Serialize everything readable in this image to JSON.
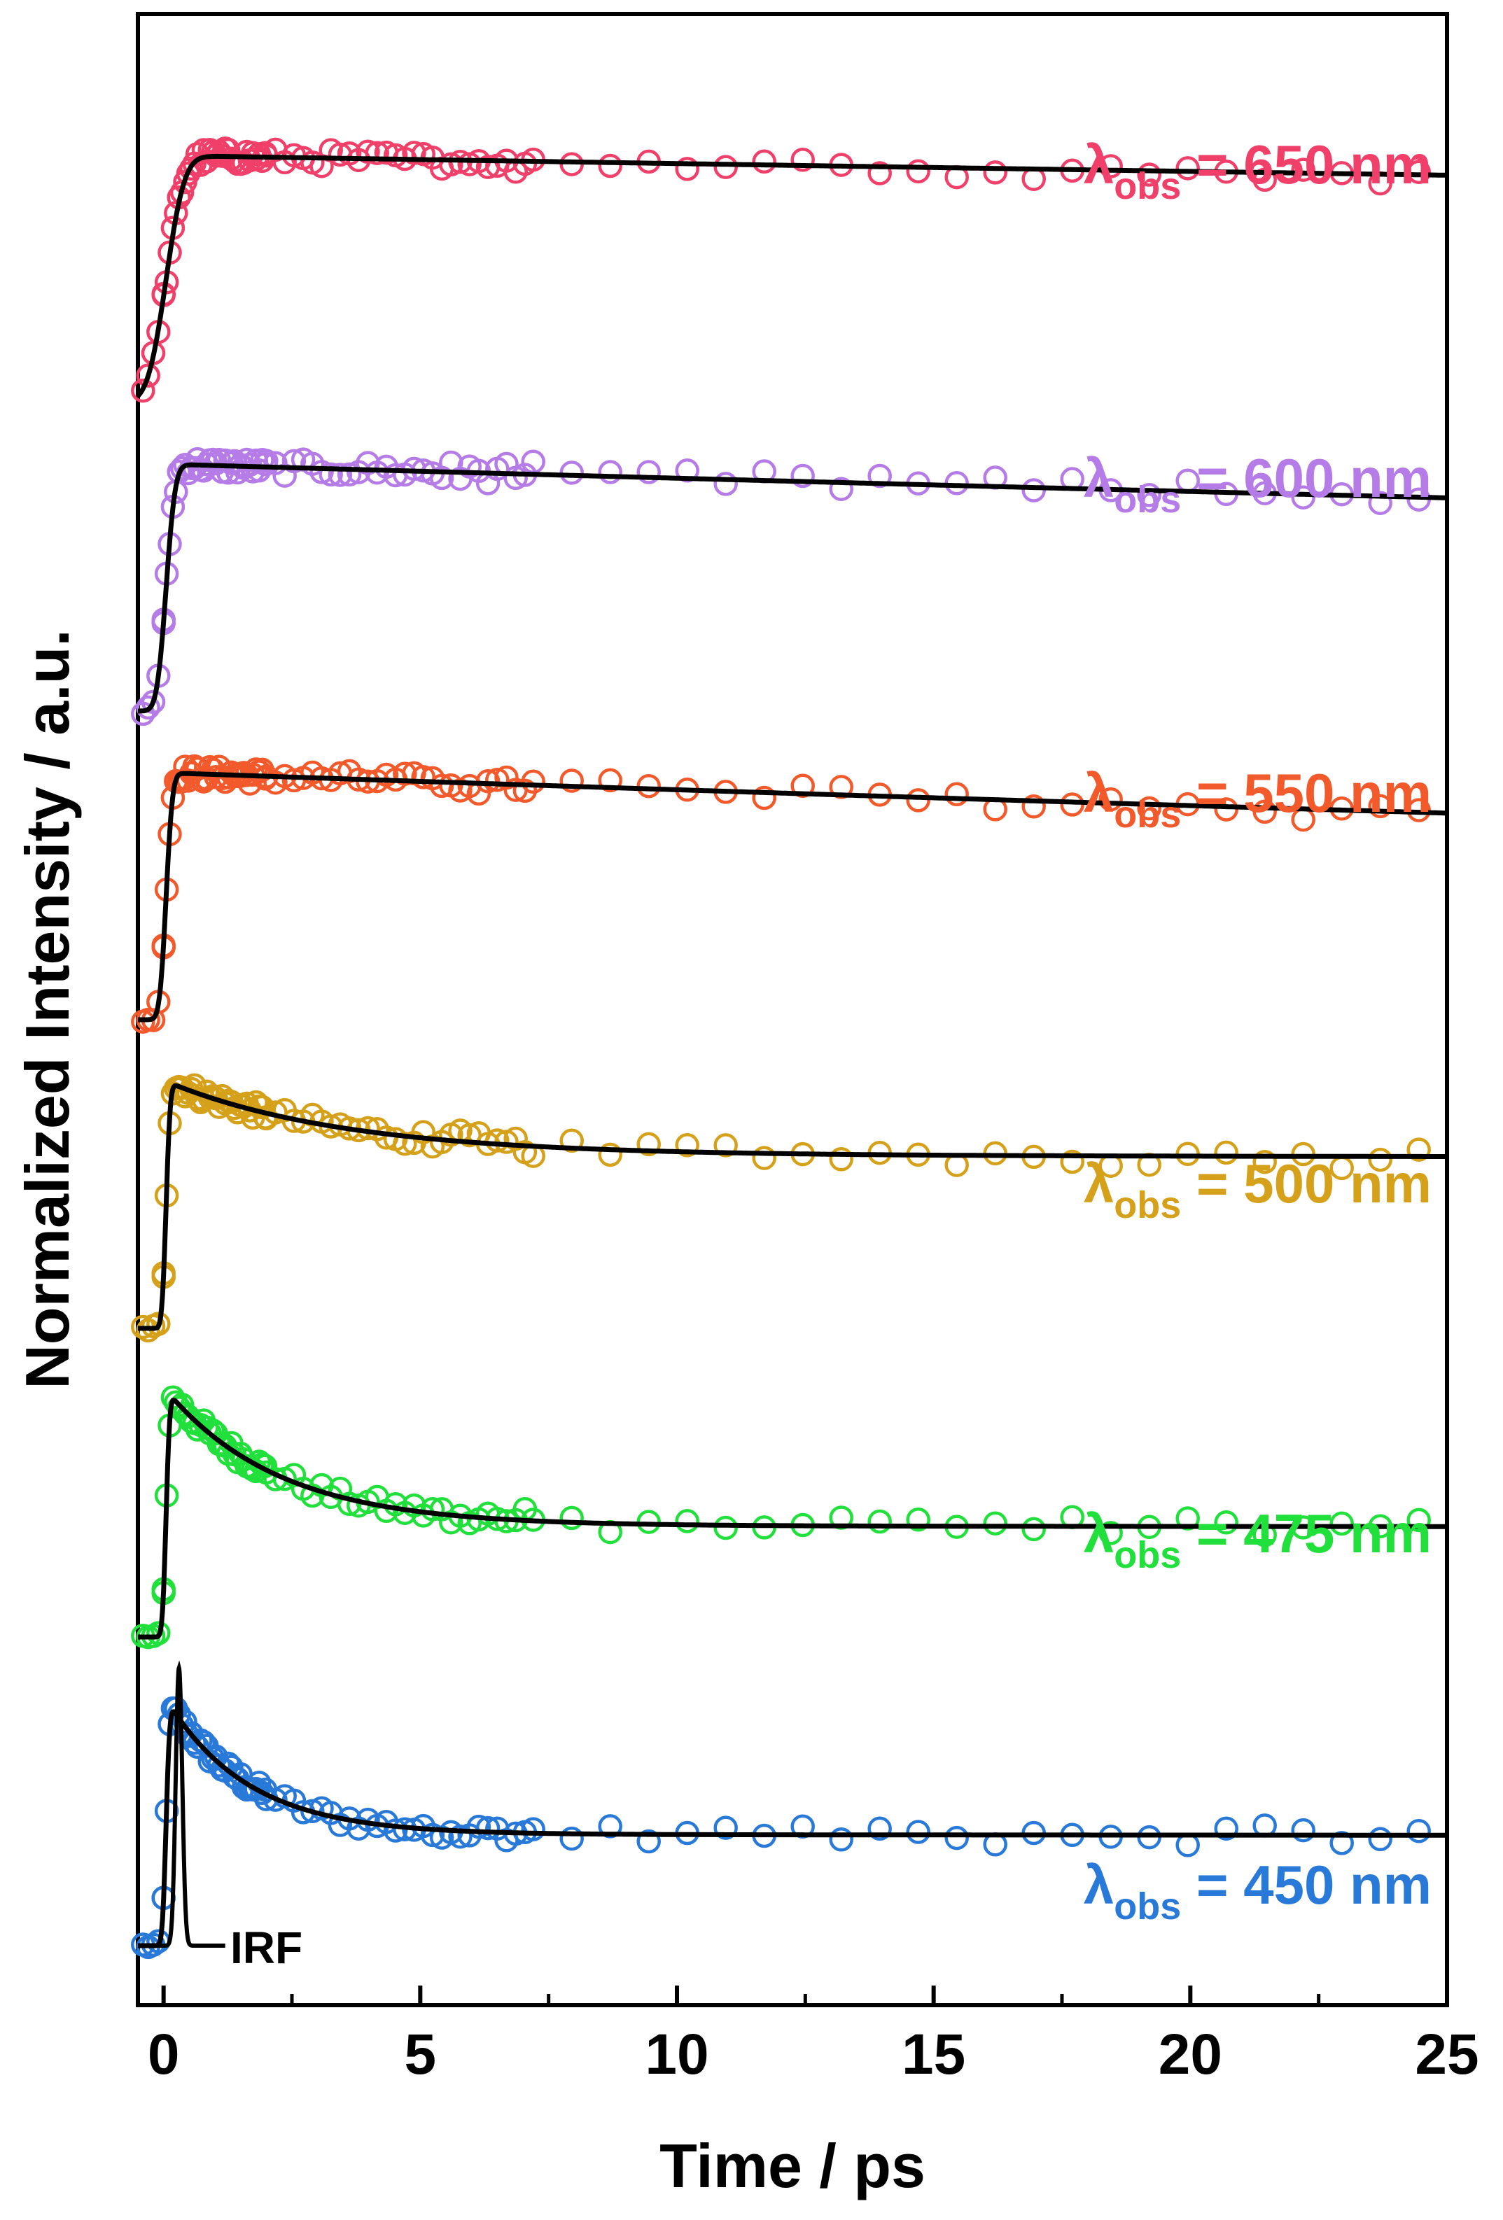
{
  "chart_data": {
    "type": "scatter",
    "xlabel": "Time / ps",
    "ylabel": "Normalized Intensity / a.u.",
    "xlim": [
      -0.5,
      25
    ],
    "x_ticks": [
      0,
      5,
      10,
      15,
      20,
      25
    ],
    "x_tick_labels": [
      "0",
      "5",
      "10",
      "15",
      "20",
      "25"
    ],
    "y_ticks": [],
    "grid": false,
    "legend": "none",
    "label_prefix": "λ",
    "label_subscript": "obs",
    "irf_label": "IRF",
    "series": [
      {
        "label_value": "= 450 nm",
        "color": "#2979d8",
        "baseline": 0.0,
        "amplitude": 1.0,
        "fast_fraction": 0.55,
        "fast_tau": 1.6,
        "rise_tau": 0.08,
        "long_tau": 4000,
        "plateau_level": 0.12
      },
      {
        "label_value": "= 475 nm",
        "color": "#22e03c",
        "baseline": 1.0,
        "amplitude": 1.0,
        "fast_fraction": 0.55,
        "fast_tau": 2.2,
        "rise_tau": 0.08,
        "long_tau": 4000,
        "plateau_level": 0.12
      },
      {
        "label_value": "= 500 nm",
        "color": "#d6a11a",
        "baseline": 2.0,
        "amplitude": 1.0,
        "fast_fraction": 0.3,
        "fast_tau": 3.5,
        "rise_tau": 0.09,
        "long_tau": 4000,
        "plateau_level": 0.45
      },
      {
        "label_value": "= 550 nm",
        "color": "#f25a2c",
        "baseline": 3.0,
        "amplitude": 1.0,
        "fast_fraction": 0.0,
        "fast_tau": 1.0,
        "rise_tau": 0.14,
        "long_tau": 140,
        "plateau_level": 0.0
      },
      {
        "label_value": "= 600 nm",
        "color": "#b57ce8",
        "baseline": 4.0,
        "amplitude": 1.0,
        "fast_fraction": 0.0,
        "fast_tau": 1.0,
        "rise_tau": 0.2,
        "long_tau": 170,
        "plateau_level": 0.0
      },
      {
        "label_value": "= 650 nm",
        "color": "#f0406a",
        "baseline": 5.0,
        "amplitude": 1.0,
        "fast_fraction": 0.0,
        "fast_tau": 1.0,
        "rise_tau": 0.4,
        "long_tau": 300,
        "plateau_level": 0.0
      }
    ],
    "irf": {
      "center": 0.3,
      "width": 0.09,
      "height": 0.9,
      "baseline": 0.0
    }
  }
}
